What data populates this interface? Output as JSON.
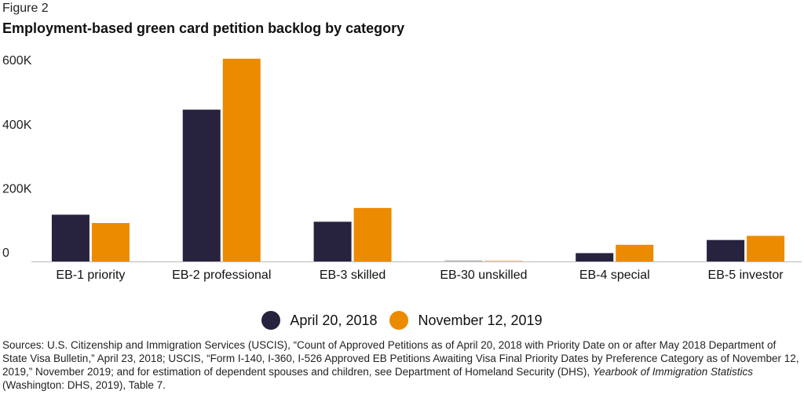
{
  "figure_label": "Figure 2",
  "title": "Employment-based green card petition backlog by category",
  "chart_data": {
    "type": "bar",
    "categories": [
      "EB-1 priority",
      "EB-2 professional",
      "EB-3 skilled",
      "EB-30 unskilled",
      "EB-4 special",
      "EB-5 investor"
    ],
    "series": [
      {
        "name": "April 20, 2018",
        "color": "#27223d",
        "values": [
          146000,
          474000,
          124000,
          2000,
          26000,
          67000
        ]
      },
      {
        "name": "November 12, 2019",
        "color": "#ec8a00",
        "values": [
          120000,
          633000,
          167000,
          2000,
          52000,
          80000
        ]
      }
    ],
    "ylim": [
      0,
      630000
    ],
    "yticks": [
      0,
      200000,
      400000,
      600000
    ],
    "ytick_labels": [
      "0",
      "200K",
      "400K",
      "600K"
    ],
    "grid": false,
    "legend_position": "bottom"
  },
  "sources": {
    "p1": "Sources: U.S. Citizenship and Immigration Services (USCIS), “Count of Approved Petitions as of April 20, 2018 with Priority Date on or after May 2018 Department of State Visa Bulletin,” April 23, 2018; USCIS, “Form I-140, I-360, I-526 Approved EB Petitions Awaiting Visa Final Priority Dates by Preference Category as of November 12, 2019,” November 2019; and for estimation of dependent spouses and children, see Department of Homeland Security (DHS), ",
    "italic": "Yearbook of Immigration Statistics",
    "p2": " (Washington: DHS, 2019), Table 7."
  }
}
